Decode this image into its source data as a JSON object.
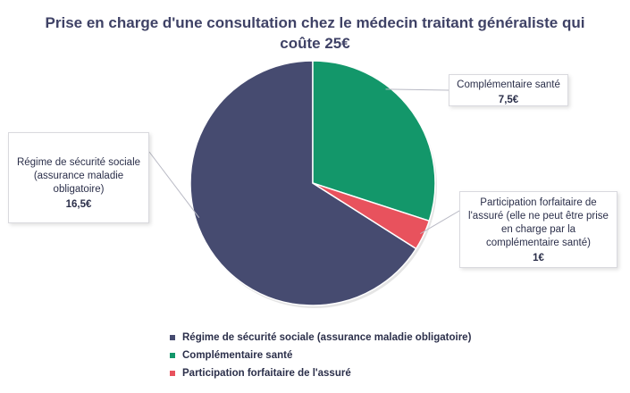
{
  "title_lines": [
    "Prise en charge d'une consultation chez le médecin traitant généraliste qui",
    "coûte 25€"
  ],
  "chart_data": {
    "type": "pie",
    "title": "Prise en charge d'une consultation chez le médecin traitant généraliste qui coûte 25€",
    "total": 25,
    "slices": [
      {
        "label": "Régime de sécurité sociale (assurance maladie obligatoire)",
        "callout_lines": [
          "Régime de sécurité sociale",
          "(assurance maladie",
          "obligatoire)"
        ],
        "value": 16.5,
        "value_label": "16,5€",
        "color": "#464b70"
      },
      {
        "label": "Complémentaire santé",
        "callout_lines": [
          "Complémentaire santé"
        ],
        "value": 7.5,
        "value_label": "7,5€",
        "color": "#13976a"
      },
      {
        "label": "Participation forfaitaire de l'assuré",
        "callout_lines": [
          "Participation forfaitaire de",
          "l'assuré (elle ne peut être prise",
          "en charge par la",
          "complémentaire santé)"
        ],
        "value": 1,
        "value_label": "1€",
        "color": "#e8525d"
      }
    ],
    "legend": {
      "position": "bottom",
      "items": [
        "Régime de sécurité sociale (assurance maladie obligatoire)",
        "Complémentaire santé",
        "Participation forfaitaire de l'assuré"
      ]
    }
  }
}
